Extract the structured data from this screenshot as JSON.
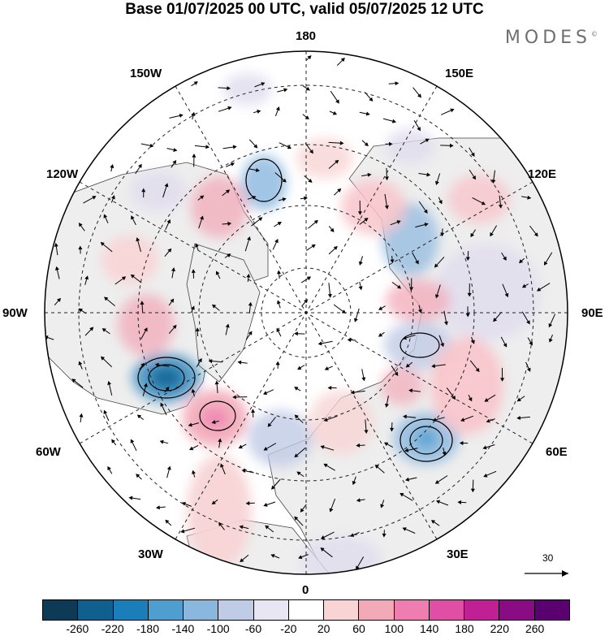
{
  "title": "Base 01/07/2025 00 UTC, valid 05/07/2025 12 UTC",
  "brand": "MODES",
  "brand_mark": "©",
  "longitude_labels": {
    "top": "180",
    "top_left": "150W",
    "top_right": "150E",
    "upper_left": "120W",
    "upper_right": "120E",
    "left": "90W",
    "right": "90E",
    "lower_left": "60W",
    "lower_right": "60E",
    "bottom_left": "30W",
    "bottom_right": "30E",
    "bottom": "0"
  },
  "reference_vector": {
    "value": "30"
  },
  "colorbar": {
    "colors": [
      "#0d3a57",
      "#0f5f8f",
      "#1a7ebb",
      "#4e9fd0",
      "#8ab7de",
      "#c0cbe6",
      "#e8e6f3",
      "#ffffff",
      "#f8d4d5",
      "#f2a9b8",
      "#ef7db0",
      "#e04ea6",
      "#c11f95",
      "#8a0c84",
      "#5a0070"
    ],
    "ticks": [
      "-260",
      "-220",
      "-180",
      "-140",
      "-100",
      "-60",
      "-20",
      "20",
      "60",
      "100",
      "140",
      "180",
      "220",
      "260"
    ]
  },
  "colors": {
    "land": "#eeeeee",
    "ocean": "#ffffff",
    "coast": "#444444",
    "grid": "#222222"
  }
}
